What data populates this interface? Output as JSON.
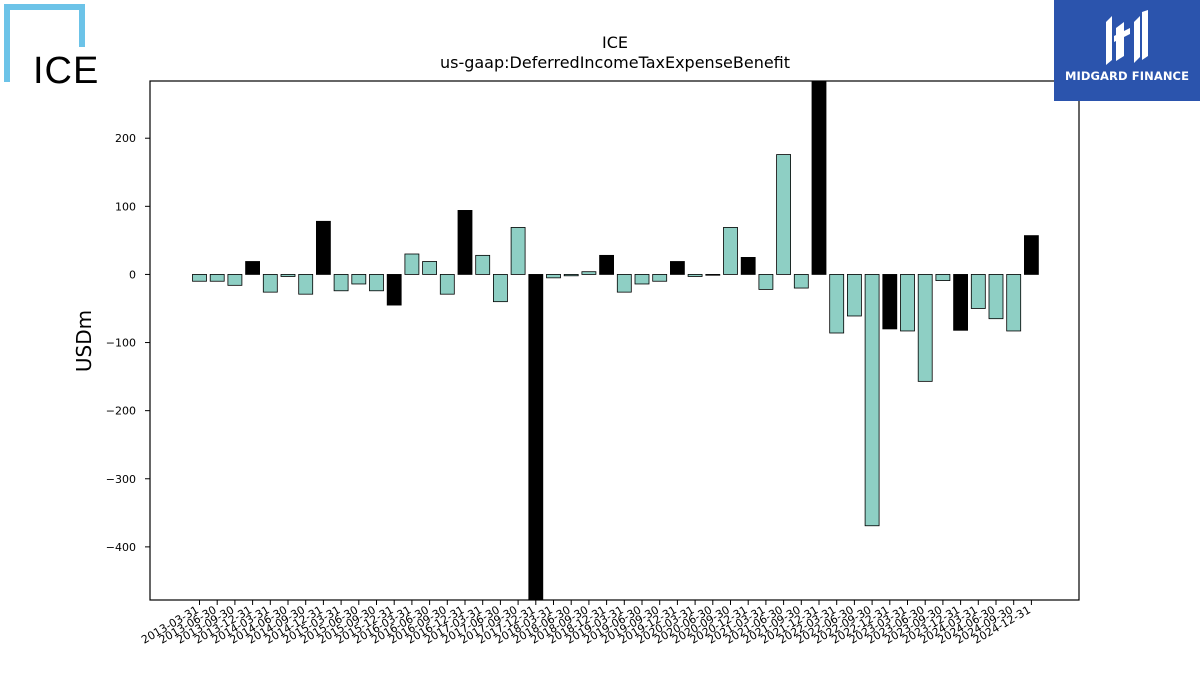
{
  "header": {
    "title": "ICE",
    "subtitle": "us-gaap:DeferredIncomeTaxExpenseBenefit"
  },
  "logos": {
    "left_text": "ICE",
    "right_text": "MIDGARD FINANCE"
  },
  "colors": {
    "quarter_bar": "#8ecfc4",
    "annual_bar": "#000000",
    "logo_left": "#6cc3e8",
    "logo_right_bg": "#2b54ad"
  },
  "chart_data": {
    "type": "bar",
    "title": "ICE",
    "subtitle": "us-gaap:DeferredIncomeTaxExpenseBenefit",
    "xlabel": "",
    "ylabel": "USDm",
    "ylim": [
      -478,
      284
    ],
    "yticks": [
      200,
      100,
      0,
      -100,
      -200,
      -300,
      -400
    ],
    "categories": [
      "2013-03-31",
      "2013-06-30",
      "2013-09-30",
      "2013-12-31",
      "2014-03-31",
      "2014-06-30",
      "2014-09-30",
      "2014-12-31",
      "2015-03-31",
      "2015-06-30",
      "2015-09-30",
      "2015-12-31",
      "2016-03-31",
      "2016-06-30",
      "2016-09-30",
      "2016-12-31",
      "2017-03-31",
      "2017-06-30",
      "2017-09-30",
      "2017-12-31",
      "2018-03-31",
      "2018-06-30",
      "2018-09-30",
      "2018-12-31",
      "2019-03-31",
      "2019-06-30",
      "2019-09-30",
      "2019-12-31",
      "2020-03-31",
      "2020-06-30",
      "2020-09-30",
      "2020-12-31",
      "2021-03-31",
      "2021-06-30",
      "2021-09-30",
      "2021-12-31",
      "2022-03-31",
      "2022-06-30",
      "2022-09-30",
      "2022-12-31",
      "2023-03-31",
      "2023-06-30",
      "2023-09-30",
      "2023-12-31",
      "2024-03-31",
      "2024-06-30",
      "2024-09-30",
      "2024-12-31"
    ],
    "values": [
      -10,
      -10,
      -16,
      19,
      -26,
      -3,
      -29,
      78,
      -24,
      -14,
      -24,
      -45,
      30,
      19,
      -29,
      94,
      28,
      -40,
      69,
      -478,
      -5,
      -2,
      4,
      28,
      -26,
      -14,
      -10,
      19,
      -3,
      -1,
      69,
      25,
      -22,
      176,
      -20,
      284,
      -86,
      -61,
      -369,
      -80,
      -83,
      -157,
      -9,
      -82,
      -50,
      -65,
      -83,
      57
    ],
    "annual": [
      false,
      false,
      false,
      true,
      false,
      false,
      false,
      true,
      false,
      false,
      false,
      true,
      false,
      false,
      false,
      true,
      false,
      false,
      false,
      true,
      false,
      false,
      false,
      true,
      false,
      false,
      false,
      true,
      false,
      false,
      false,
      true,
      false,
      false,
      false,
      true,
      false,
      false,
      false,
      true,
      false,
      false,
      false,
      true,
      false,
      false,
      false,
      true
    ],
    "grid": false,
    "legend": "none"
  }
}
